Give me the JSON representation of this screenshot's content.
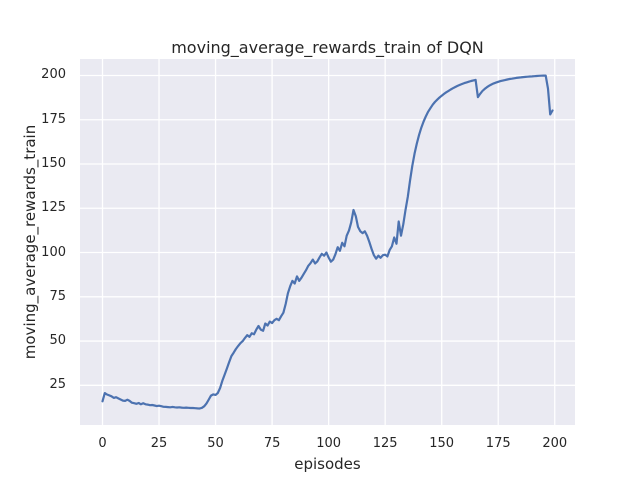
{
  "title": "moving_average_rewards_train of DQN",
  "chart_data": {
    "type": "line",
    "title": "moving_average_rewards_train of DQN",
    "xlabel": "episodes",
    "ylabel": "moving_average_rewards_train",
    "x_ticks": [
      0,
      25,
      50,
      75,
      100,
      125,
      150,
      175,
      200
    ],
    "y_ticks": [
      25,
      50,
      75,
      100,
      125,
      150,
      175,
      200
    ],
    "xlim": [
      -9.95,
      208.95
    ],
    "ylim": [
      2.6,
      209.3
    ],
    "grid": true,
    "legend": false,
    "colors": {
      "line": "#4c72b0",
      "axes_background": "#eaeaf2",
      "grid": "#ffffff",
      "text": "#262626",
      "figure_background": "#ffffff"
    },
    "series": [
      {
        "name": "moving_average_rewards_train",
        "color": "#4c72b0",
        "x_start": 0,
        "x_step": 1,
        "values": [
          16.0,
          20.6,
          19.8,
          19.3,
          18.8,
          17.9,
          18.3,
          17.6,
          17.0,
          16.4,
          16.2,
          16.9,
          16.2,
          15.2,
          14.9,
          14.6,
          15.0,
          14.3,
          14.9,
          14.3,
          14.1,
          13.8,
          13.9,
          13.6,
          13.3,
          13.5,
          13.2,
          12.9,
          12.8,
          12.7,
          12.6,
          12.8,
          12.6,
          12.5,
          12.6,
          12.4,
          12.3,
          12.4,
          12.3,
          12.2,
          12.2,
          12.1,
          12.0,
          11.9,
          12.3,
          13.2,
          14.8,
          17.0,
          19.2,
          19.9,
          19.6,
          20.7,
          23.5,
          27.5,
          31.0,
          34.5,
          38.0,
          41.5,
          43.5,
          45.5,
          47.3,
          48.8,
          50.0,
          51.8,
          53.3,
          52.4,
          54.4,
          53.8,
          56.5,
          58.5,
          56.5,
          55.8,
          59.9,
          58.8,
          61.0,
          60.2,
          61.8,
          62.6,
          61.8,
          64.0,
          66.0,
          71.0,
          77.0,
          81.0,
          84.0,
          82.5,
          86.5,
          84.0,
          85.8,
          88.0,
          90.0,
          92.5,
          94.0,
          96.0,
          93.8,
          95.0,
          97.3,
          99.3,
          98.2,
          100.0,
          97.2,
          94.8,
          96.0,
          99.0,
          103.0,
          101.0,
          105.5,
          103.5,
          109.5,
          112.5,
          117.0,
          124.0,
          120.5,
          114.5,
          112.0,
          111.0,
          112.0,
          109.5,
          106.0,
          102.0,
          98.5,
          96.5,
          98.2,
          97.0,
          98.5,
          98.8,
          97.8,
          101.5,
          103.5,
          108.5,
          105.0,
          117.5,
          109.5,
          116.0,
          124.0,
          131.5,
          140.5,
          149.0,
          156.0,
          161.5,
          166.5,
          170.5,
          174.0,
          177.0,
          179.5,
          181.5,
          183.5,
          185.0,
          186.3,
          187.5,
          188.6,
          189.6,
          190.5,
          191.3,
          192.1,
          192.8,
          193.5,
          194.1,
          194.7,
          195.2,
          195.7,
          196.1,
          196.5,
          196.9,
          197.2,
          197.5,
          187.8,
          189.6,
          191.2,
          192.4,
          193.4,
          194.2,
          194.9,
          195.5,
          196.0,
          196.4,
          196.8,
          197.1,
          197.4,
          197.7,
          198.0,
          198.2,
          198.4,
          198.6,
          198.8,
          198.9,
          199.1,
          199.2,
          199.3,
          199.4,
          199.5,
          199.6,
          199.7,
          199.8,
          199.85,
          199.9,
          199.95,
          192.5,
          178.0,
          180.2
        ]
      }
    ]
  }
}
